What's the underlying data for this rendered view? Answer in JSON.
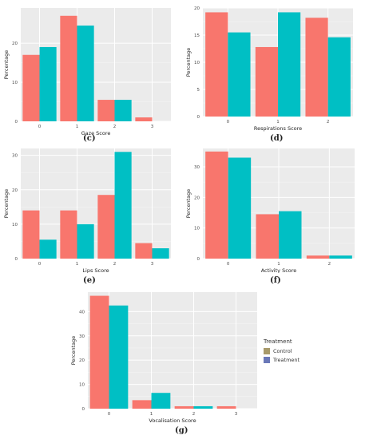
{
  "colors": {
    "control": "#F8766D",
    "treatment": "#00BFC4",
    "legend_control": "#A89A6A",
    "legend_treatment": "#6A78B8",
    "panel_bg": "#EBEBEB",
    "grid": "#FFFFFF"
  },
  "legend": {
    "title": "Treatment",
    "items": [
      "Control",
      "Treatment"
    ]
  },
  "chart_data": [
    {
      "id": "c",
      "type": "bar",
      "panel_label": "(c)",
      "xlabel": "Gaze Score",
      "ylabel": "Percentage",
      "categories": [
        "0",
        "1",
        "2",
        "3"
      ],
      "ylim": [
        0,
        29
      ],
      "yticks": [
        0,
        10,
        20
      ],
      "series": [
        {
          "name": "Control",
          "values": [
            17,
            27,
            5.5,
            1
          ]
        },
        {
          "name": "Treatment",
          "values": [
            19,
            24.5,
            5.5,
            0
          ]
        }
      ]
    },
    {
      "id": "d",
      "type": "bar",
      "panel_label": "(d)",
      "xlabel": "Respirations Score",
      "ylabel": "Percentage",
      "categories": [
        "0",
        "1",
        "2"
      ],
      "ylim": [
        0,
        20
      ],
      "yticks": [
        0,
        5,
        10,
        15,
        20
      ],
      "series": [
        {
          "name": "Control",
          "values": [
            19.2,
            12.8,
            18.2
          ]
        },
        {
          "name": "Treatment",
          "values": [
            15.5,
            19.2,
            14.6
          ]
        }
      ]
    },
    {
      "id": "e",
      "type": "bar",
      "panel_label": "(e)",
      "xlabel": "Lips Score",
      "ylabel": "Percentage",
      "categories": [
        "0",
        "1",
        "2",
        "3"
      ],
      "ylim": [
        0,
        32
      ],
      "yticks": [
        0,
        10,
        20,
        30
      ],
      "series": [
        {
          "name": "Control",
          "values": [
            14,
            14,
            18.5,
            4.5
          ]
        },
        {
          "name": "Treatment",
          "values": [
            5.5,
            10,
            31,
            3
          ]
        }
      ]
    },
    {
      "id": "f",
      "type": "bar",
      "panel_label": "(f)",
      "xlabel": "Activity Score",
      "ylabel": "Percentage",
      "categories": [
        "0",
        "1",
        "2"
      ],
      "ylim": [
        0,
        36
      ],
      "yticks": [
        0,
        10,
        20,
        30
      ],
      "series": [
        {
          "name": "Control",
          "values": [
            35,
            14.5,
            1
          ]
        },
        {
          "name": "Treatment",
          "values": [
            33,
            15.5,
            1
          ]
        }
      ]
    },
    {
      "id": "g",
      "type": "bar",
      "panel_label": "(g)",
      "xlabel": "Vocalisation Score",
      "ylabel": "Percentage",
      "categories": [
        "0",
        "1",
        "2",
        "3"
      ],
      "ylim": [
        0,
        48
      ],
      "yticks": [
        0,
        10,
        20,
        30,
        40
      ],
      "series": [
        {
          "name": "Control",
          "values": [
            46.5,
            3.5,
            1,
            1
          ]
        },
        {
          "name": "Treatment",
          "values": [
            42.5,
            6.5,
            1,
            0
          ]
        }
      ]
    }
  ]
}
